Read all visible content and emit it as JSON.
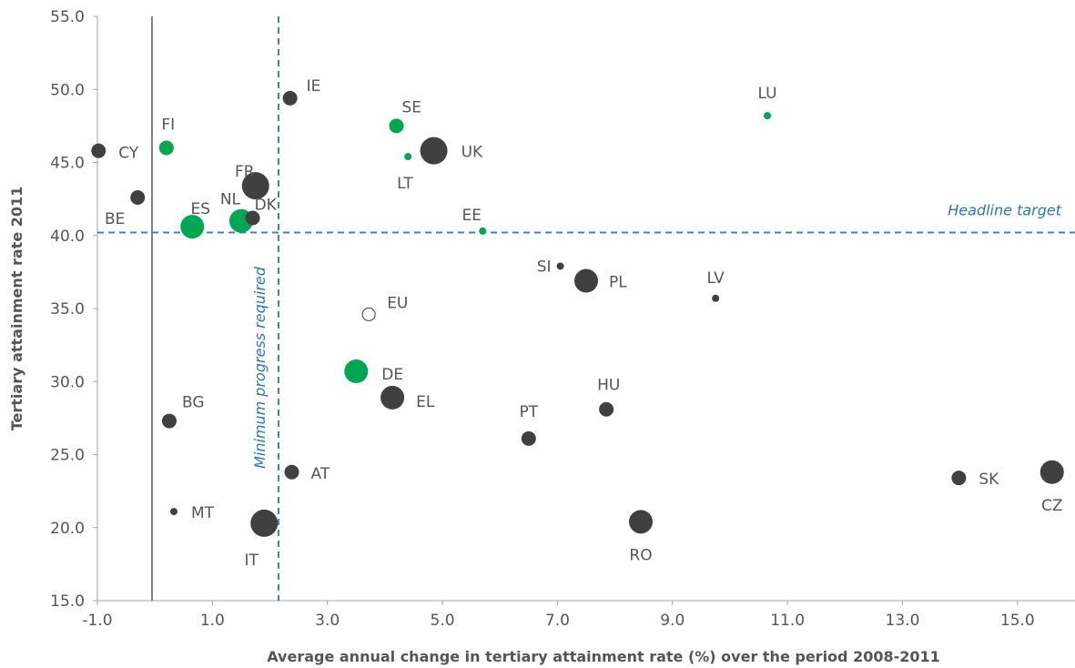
{
  "chart_data": {
    "type": "scatter",
    "xlabel": "Average annual change in tertiary attainment rate (%) over the period 2008-2011",
    "ylabel": "Tertiary attainment rate 2011",
    "xlim": [
      -1.0,
      16.0
    ],
    "ylim": [
      15.0,
      55.0
    ],
    "x_ticks": [
      "-1.0",
      "1.0",
      "3.0",
      "5.0",
      "7.0",
      "9.0",
      "11.0",
      "13.0",
      "15.0"
    ],
    "y_ticks": [
      "15.0",
      "20.0",
      "25.0",
      "30.0",
      "35.0",
      "40.0",
      "45.0",
      "50.0",
      "55.0"
    ],
    "grid": false,
    "colors": {
      "dark": "#404040",
      "green": "#00a651",
      "reference": "#4a7ebb",
      "axis": "#808080"
    },
    "reference_lines": [
      {
        "label": "Headline target",
        "orientation": "horizontal",
        "value": 40.2
      },
      {
        "label": "Minimum progress required",
        "orientation": "vertical",
        "value": 2.15
      }
    ],
    "vertical_line": {
      "x": -0.05
    },
    "points": [
      {
        "label": "CY",
        "x": -0.98,
        "y": 45.8,
        "size": "small",
        "color": "dark"
      },
      {
        "label": "BE",
        "x": -0.3,
        "y": 42.6,
        "size": "small",
        "color": "dark"
      },
      {
        "label": "FI",
        "x": 0.2,
        "y": 46.0,
        "size": "small",
        "color": "green"
      },
      {
        "label": "ES",
        "x": 0.65,
        "y": 40.6,
        "size": "medium",
        "color": "green"
      },
      {
        "label": "BG",
        "x": 0.25,
        "y": 27.3,
        "size": "small",
        "color": "dark"
      },
      {
        "label": "MT",
        "x": 0.33,
        "y": 21.1,
        "size": "tiny",
        "color": "dark"
      },
      {
        "label": "NL",
        "x": 1.5,
        "y": 41.0,
        "size": "medium",
        "color": "green"
      },
      {
        "label": "DK",
        "x": 1.7,
        "y": 41.2,
        "size": "small",
        "color": "dark"
      },
      {
        "label": "FR",
        "x": 1.75,
        "y": 43.4,
        "size": "large",
        "color": "dark"
      },
      {
        "label": "IE",
        "x": 2.35,
        "y": 49.4,
        "size": "small",
        "color": "dark"
      },
      {
        "label": "AT",
        "x": 2.38,
        "y": 23.8,
        "size": "small",
        "color": "dark"
      },
      {
        "label": "IT",
        "x": 1.9,
        "y": 20.3,
        "size": "large",
        "color": "dark"
      },
      {
        "label": "DE",
        "x": 3.5,
        "y": 30.7,
        "size": "medium",
        "color": "green"
      },
      {
        "label": "EU",
        "x": 3.72,
        "y": 34.6,
        "size": "small",
        "color": "hollow"
      },
      {
        "label": "EL",
        "x": 4.13,
        "y": 28.9,
        "size": "medium",
        "color": "dark"
      },
      {
        "label": "SE",
        "x": 4.2,
        "y": 47.5,
        "size": "small",
        "color": "green"
      },
      {
        "label": "LT",
        "x": 4.4,
        "y": 45.4,
        "size": "tiny",
        "color": "green"
      },
      {
        "label": "UK",
        "x": 4.85,
        "y": 45.8,
        "size": "large",
        "color": "dark"
      },
      {
        "label": "EE",
        "x": 5.7,
        "y": 40.3,
        "size": "tiny",
        "color": "green"
      },
      {
        "label": "PT",
        "x": 6.5,
        "y": 26.1,
        "size": "small",
        "color": "dark"
      },
      {
        "label": "SI",
        "x": 7.05,
        "y": 37.9,
        "size": "tiny",
        "color": "dark"
      },
      {
        "label": "PL",
        "x": 7.5,
        "y": 36.9,
        "size": "medium",
        "color": "dark"
      },
      {
        "label": "HU",
        "x": 7.85,
        "y": 28.1,
        "size": "small",
        "color": "dark"
      },
      {
        "label": "RO",
        "x": 8.45,
        "y": 20.4,
        "size": "medium",
        "color": "dark"
      },
      {
        "label": "LV",
        "x": 9.75,
        "y": 35.7,
        "size": "tiny",
        "color": "dark"
      },
      {
        "label": "LU",
        "x": 10.65,
        "y": 48.2,
        "size": "tiny",
        "color": "green"
      },
      {
        "label": "SK",
        "x": 13.98,
        "y": 23.4,
        "size": "small",
        "color": "dark"
      },
      {
        "label": "CZ",
        "x": 15.6,
        "y": 23.8,
        "size": "medium",
        "color": "dark"
      }
    ]
  }
}
